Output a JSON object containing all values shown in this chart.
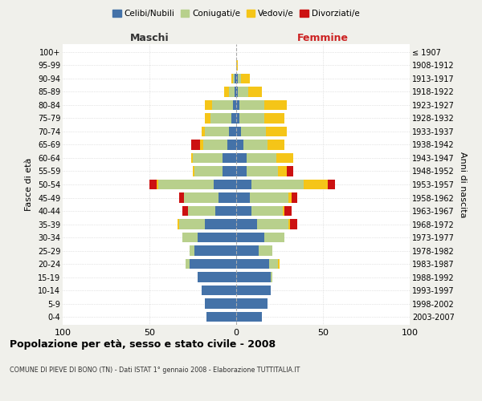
{
  "age_groups": [
    "0-4",
    "5-9",
    "10-14",
    "15-19",
    "20-24",
    "25-29",
    "30-34",
    "35-39",
    "40-44",
    "45-49",
    "50-54",
    "55-59",
    "60-64",
    "65-69",
    "70-74",
    "75-79",
    "80-84",
    "85-89",
    "90-94",
    "95-99",
    "100+"
  ],
  "birth_years": [
    "2003-2007",
    "1998-2002",
    "1993-1997",
    "1988-1992",
    "1983-1987",
    "1978-1982",
    "1973-1977",
    "1968-1972",
    "1963-1967",
    "1958-1962",
    "1953-1957",
    "1948-1952",
    "1943-1947",
    "1938-1942",
    "1933-1937",
    "1928-1932",
    "1923-1927",
    "1918-1922",
    "1913-1917",
    "1908-1912",
    "≤ 1907"
  ],
  "maschi": {
    "celibi": [
      17,
      18,
      20,
      22,
      27,
      24,
      22,
      18,
      12,
      10,
      13,
      8,
      8,
      5,
      4,
      3,
      2,
      1,
      1,
      0,
      0
    ],
    "coniugati": [
      0,
      0,
      0,
      0,
      2,
      3,
      9,
      15,
      16,
      20,
      32,
      16,
      17,
      14,
      14,
      12,
      12,
      3,
      1,
      0,
      0
    ],
    "vedovi": [
      0,
      0,
      0,
      0,
      0,
      0,
      0,
      1,
      0,
      0,
      1,
      1,
      1,
      2,
      2,
      3,
      4,
      3,
      1,
      0,
      0
    ],
    "divorziati": [
      0,
      0,
      0,
      0,
      0,
      0,
      0,
      0,
      3,
      3,
      4,
      0,
      0,
      5,
      0,
      0,
      0,
      0,
      0,
      0,
      0
    ]
  },
  "femmine": {
    "nubili": [
      15,
      18,
      20,
      20,
      19,
      13,
      16,
      12,
      9,
      8,
      9,
      6,
      6,
      4,
      3,
      2,
      2,
      1,
      1,
      0,
      0
    ],
    "coniugate": [
      0,
      0,
      0,
      1,
      5,
      8,
      12,
      18,
      18,
      22,
      30,
      18,
      17,
      14,
      14,
      14,
      14,
      6,
      2,
      0,
      0
    ],
    "vedove": [
      0,
      0,
      0,
      0,
      1,
      0,
      0,
      1,
      1,
      2,
      14,
      5,
      10,
      10,
      12,
      12,
      13,
      8,
      5,
      1,
      0
    ],
    "divorziate": [
      0,
      0,
      0,
      0,
      0,
      0,
      0,
      4,
      4,
      3,
      4,
      4,
      0,
      0,
      0,
      0,
      0,
      0,
      0,
      0,
      0
    ]
  },
  "colors": {
    "celibi": "#4472a8",
    "coniugati": "#b8d08c",
    "vedovi": "#f5c518",
    "divorziati": "#cc1111"
  },
  "xlim": 100,
  "title": "Popolazione per età, sesso e stato civile - 2008",
  "subtitle": "COMUNE DI PIEVE DI BONO (TN) - Dati ISTAT 1° gennaio 2008 - Elaborazione TUTTITALIA.IT",
  "ylabel_left": "Fasce di età",
  "ylabel_right": "Anni di nascita",
  "xlabel_left": "Maschi",
  "xlabel_right": "Femmine",
  "legend_labels": [
    "Celibi/Nubili",
    "Coniugati/e",
    "Vedovi/e",
    "Divorziati/e"
  ],
  "bg_color": "#f0f0eb",
  "plot_bg": "#ffffff"
}
